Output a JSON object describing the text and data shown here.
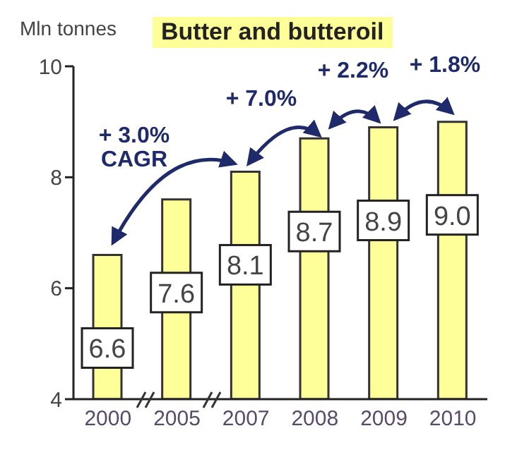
{
  "chart_data": {
    "type": "bar",
    "title": "Butter and butteroil",
    "ylabel": "Mln tonnes",
    "categories": [
      "2000",
      "2005",
      "2007",
      "2008",
      "2009",
      "2010"
    ],
    "values": [
      6.6,
      7.6,
      8.1,
      8.7,
      8.9,
      9.0
    ],
    "color": "#ffff99",
    "ylim": [
      4,
      10
    ],
    "yticks": [
      4,
      6,
      8,
      10
    ],
    "value_labels": [
      "6.6",
      "7.6",
      "8.1",
      "8.7",
      "8.9",
      "9.0"
    ],
    "grid": false,
    "annotations": [
      "+ 3.0% CAGR",
      "+ 7.0%",
      "+ 2.2%",
      "+ 1.8%"
    ]
  }
}
